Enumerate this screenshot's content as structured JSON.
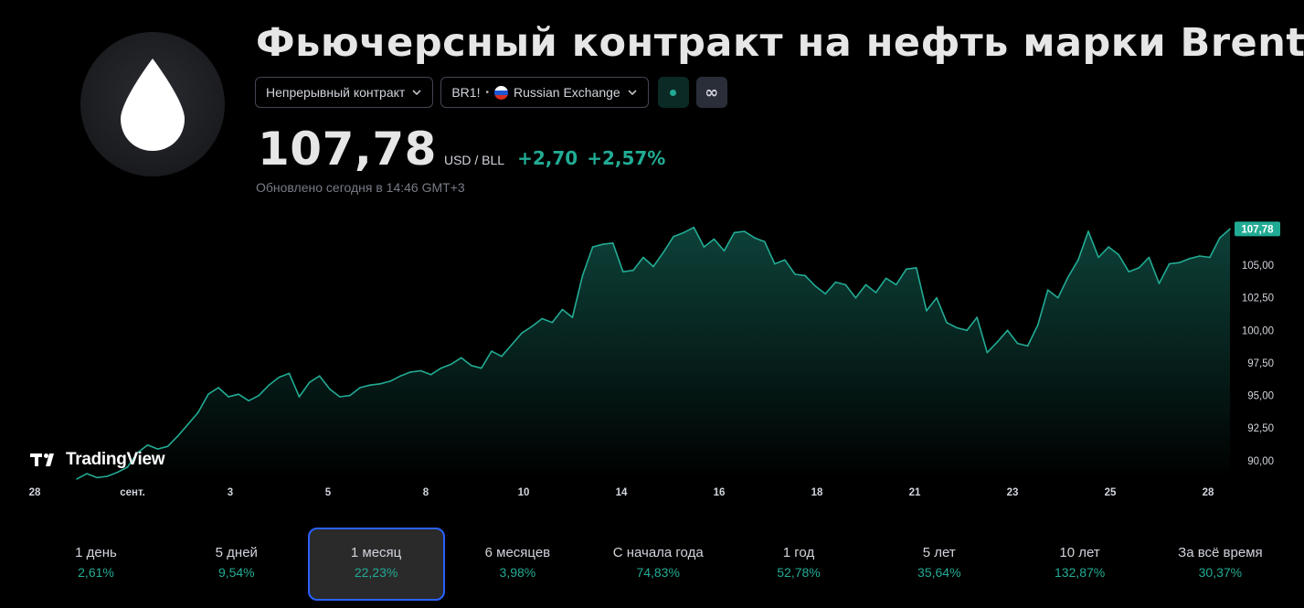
{
  "header": {
    "title": "Фьючерсный контракт на нефть марки Brent",
    "contract_select": "Непрерывный контракт",
    "symbol": "BR1!",
    "exchange": "Russian Exchange",
    "infinity_label": "∞"
  },
  "quote": {
    "price": "107,78",
    "unit": "USD / BLL",
    "change": "+2,70",
    "change_pct": "+2,57%",
    "updated": "Обновлено сегодня в 14:46 GMT+3"
  },
  "colors": {
    "accent": "#22ab94",
    "selected_border": "#2962ff"
  },
  "brand": "TradingView",
  "chart_data": {
    "type": "area",
    "x_tick_labels": [
      "28",
      "сент.",
      "3",
      "5",
      "8",
      "10",
      "14",
      "16",
      "18",
      "21",
      "23",
      "25",
      "28"
    ],
    "y_tick_labels": [
      "105,00",
      "102,50",
      "100,00",
      "97,50",
      "95,00",
      "92,50",
      "90,00"
    ],
    "y_tick_values": [
      105.0,
      102.5,
      100.0,
      97.5,
      95.0,
      92.5,
      90.0
    ],
    "ylim": [
      88.8,
      109.0
    ],
    "last_value_label": "107,78",
    "last_value": 107.78,
    "grid": false,
    "series": [
      {
        "values": [
          88.6,
          89.0,
          88.7,
          88.8,
          89.1,
          89.5,
          90.6,
          91.2,
          90.9,
          91.1,
          91.9,
          92.8,
          93.7,
          95.1,
          95.6,
          94.9,
          95.1,
          94.6,
          95.0,
          95.8,
          96.4,
          96.7,
          94.9,
          96.0,
          96.5,
          95.5,
          94.9,
          95.0,
          95.6,
          95.8,
          95.9,
          96.1,
          96.5,
          96.8,
          96.9,
          96.6,
          97.1,
          97.4,
          97.9,
          97.3,
          97.1,
          98.4,
          98.0,
          98.9,
          99.8,
          100.3,
          100.9,
          100.6,
          101.6,
          101.0,
          104.2,
          106.4,
          106.6,
          106.7,
          104.5,
          104.6,
          105.6,
          104.9,
          106.0,
          107.2,
          107.5,
          107.9,
          106.4,
          107.0,
          106.1,
          107.5,
          107.6,
          107.1,
          106.8,
          105.1,
          105.4,
          104.3,
          104.2,
          103.4,
          102.8,
          103.7,
          103.5,
          102.5,
          103.5,
          102.9,
          104.0,
          103.5,
          104.7,
          104.8,
          101.5,
          102.5,
          100.6,
          100.2,
          100.0,
          101.0,
          98.3,
          99.1,
          100.0,
          99.0,
          98.8,
          100.4,
          103.1,
          102.5,
          104.1,
          105.4,
          107.6,
          105.6,
          106.4,
          105.8,
          104.5,
          104.8,
          105.6,
          103.6,
          105.1,
          105.2,
          105.5,
          105.7,
          105.6,
          107.1,
          107.78
        ]
      }
    ]
  },
  "periods": [
    {
      "label": "1 день",
      "value": "2,61%"
    },
    {
      "label": "5 дней",
      "value": "9,54%"
    },
    {
      "label": "1 месяц",
      "value": "22,23%"
    },
    {
      "label": "6 месяцев",
      "value": "3,98%"
    },
    {
      "label": "С начала года",
      "value": "74,83%"
    },
    {
      "label": "1 год",
      "value": "52,78%"
    },
    {
      "label": "5 лет",
      "value": "35,64%"
    },
    {
      "label": "10 лет",
      "value": "132,87%"
    },
    {
      "label": "За всё время",
      "value": "30,37%"
    }
  ],
  "selected_period": "1 месяц"
}
